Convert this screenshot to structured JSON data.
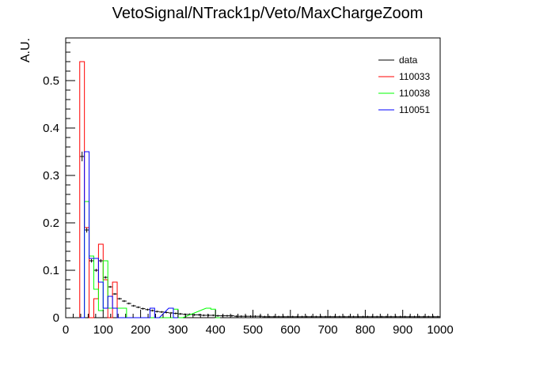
{
  "chart_data": {
    "type": "histogram",
    "title": "VetoSignal/NTrack1p/Veto/MaxChargeZoom",
    "xlabel": "",
    "ylabel": "A.U.",
    "xlim": [
      0,
      1000
    ],
    "ylim": [
      0,
      0.59
    ],
    "bin_width": 12.5,
    "x_ticks": [
      0,
      100,
      200,
      300,
      400,
      500,
      600,
      700,
      800,
      900,
      1000
    ],
    "y_ticks": [
      0,
      0.1,
      0.2,
      0.3,
      0.4,
      0.5
    ],
    "y_tick_labels": [
      "0",
      "0.1",
      "0.2",
      "0.3",
      "0.4",
      "0.5"
    ],
    "grid": false,
    "legend_position": "top-right",
    "series": [
      {
        "name": "data",
        "color": "#000000",
        "style": "error-bars",
        "points": [
          [
            43.75,
            0.34
          ],
          [
            56.25,
            0.185
          ],
          [
            68.75,
            0.12
          ],
          [
            81.25,
            0.1
          ],
          [
            93.75,
            0.12
          ],
          [
            106.25,
            0.085
          ],
          [
            118.75,
            0.065
          ],
          [
            131.25,
            0.05
          ],
          [
            143.75,
            0.04
          ],
          [
            156.25,
            0.035
          ],
          [
            168.75,
            0.03
          ],
          [
            181.25,
            0.025
          ],
          [
            193.75,
            0.022
          ],
          [
            206.25,
            0.019
          ],
          [
            218.75,
            0.017
          ],
          [
            231.25,
            0.015
          ],
          [
            243.75,
            0.013
          ],
          [
            256.25,
            0.012
          ],
          [
            268.75,
            0.011
          ],
          [
            281.25,
            0.01
          ],
          [
            293.75,
            0.009
          ],
          [
            306.25,
            0.008
          ],
          [
            318.75,
            0.007
          ],
          [
            331.25,
            0.007
          ],
          [
            343.75,
            0.006
          ],
          [
            356.25,
            0.006
          ],
          [
            368.75,
            0.005
          ],
          [
            381.25,
            0.005
          ],
          [
            393.75,
            0.005
          ],
          [
            406.25,
            0.004
          ],
          [
            418.75,
            0.004
          ],
          [
            431.25,
            0.004
          ],
          [
            443.75,
            0.004
          ],
          [
            456.25,
            0.003
          ],
          [
            468.75,
            0.003
          ],
          [
            481.25,
            0.003
          ],
          [
            493.75,
            0.003
          ],
          [
            506.25,
            0.003
          ],
          [
            518.75,
            0.003
          ],
          [
            531.25,
            0.002
          ],
          [
            543.75,
            0.002
          ],
          [
            556.25,
            0.002
          ],
          [
            568.75,
            0.002
          ],
          [
            581.25,
            0.002
          ],
          [
            593.75,
            0.002
          ],
          [
            606.25,
            0.002
          ],
          [
            618.75,
            0.002
          ],
          [
            631.25,
            0.002
          ],
          [
            643.75,
            0.002
          ],
          [
            656.25,
            0.002
          ],
          [
            668.75,
            0.002
          ],
          [
            681.25,
            0.002
          ],
          [
            693.75,
            0.002
          ],
          [
            706.25,
            0.002
          ],
          [
            718.75,
            0.002
          ],
          [
            731.25,
            0.002
          ],
          [
            743.75,
            0.002
          ],
          [
            756.25,
            0.002
          ],
          [
            768.75,
            0.002
          ],
          [
            781.25,
            0.002
          ],
          [
            793.75,
            0.002
          ],
          [
            806.25,
            0.002
          ],
          [
            818.75,
            0.002
          ],
          [
            831.25,
            0.002
          ],
          [
            843.75,
            0.002
          ],
          [
            856.25,
            0.002
          ],
          [
            868.75,
            0.002
          ],
          [
            881.25,
            0.002
          ],
          [
            893.75,
            0.002
          ],
          [
            906.25,
            0.002
          ],
          [
            918.75,
            0.002
          ],
          [
            931.25,
            0.002
          ],
          [
            943.75,
            0.002
          ],
          [
            956.25,
            0.002
          ],
          [
            968.75,
            0.002
          ],
          [
            981.25,
            0.002
          ],
          [
            993.75,
            0.002
          ]
        ]
      },
      {
        "name": "110033",
        "color": "#ff0000",
        "style": "step",
        "bins": [
          [
            37.5,
            50,
            0.54
          ],
          [
            50,
            62.5,
            0.19
          ],
          [
            62.5,
            75,
            0.0
          ],
          [
            75,
            87.5,
            0.04
          ],
          [
            87.5,
            100,
            0.155
          ],
          [
            100,
            112.5,
            0.08
          ],
          [
            112.5,
            125,
            0.0
          ],
          [
            125,
            137.5,
            0.075
          ],
          [
            137.5,
            150,
            0.0
          ]
        ]
      },
      {
        "name": "110038",
        "color": "#00ff00",
        "style": "step",
        "bins": [
          [
            37.5,
            50,
            0.0
          ],
          [
            50,
            62.5,
            0.245
          ],
          [
            62.5,
            75,
            0.13
          ],
          [
            75,
            87.5,
            0.06
          ],
          [
            87.5,
            100,
            0.015
          ],
          [
            100,
            112.5,
            0.12
          ],
          [
            112.5,
            125,
            0.02
          ],
          [
            125,
            137.5,
            0.02
          ],
          [
            137.5,
            150,
            0.02
          ],
          [
            150,
            162.5,
            0.02
          ],
          [
            162.5,
            175,
            0.0
          ],
          [
            275,
            287.5,
            0.0
          ],
          [
            287.5,
            300,
            0.018
          ],
          [
            300,
            312.5,
            0.0
          ],
          [
            375,
            387.5,
            0.02
          ],
          [
            387.5,
            400,
            0.018
          ],
          [
            400,
            412.5,
            0.0
          ]
        ]
      },
      {
        "name": "110051",
        "color": "#0000ff",
        "style": "step",
        "bins": [
          [
            37.5,
            50,
            0.0
          ],
          [
            50,
            62.5,
            0.35
          ],
          [
            62.5,
            75,
            0.125
          ],
          [
            75,
            87.5,
            0.125
          ],
          [
            87.5,
            100,
            0.075
          ],
          [
            100,
            112.5,
            0.02
          ],
          [
            112.5,
            125,
            0.045
          ],
          [
            125,
            137.5,
            0.02
          ],
          [
            137.5,
            150,
            0.0
          ],
          [
            212.5,
            225,
            0.0
          ],
          [
            225,
            237.5,
            0.02
          ],
          [
            237.5,
            250,
            0.0
          ],
          [
            275,
            287.5,
            0.02
          ],
          [
            287.5,
            300,
            0.0
          ]
        ]
      }
    ]
  }
}
